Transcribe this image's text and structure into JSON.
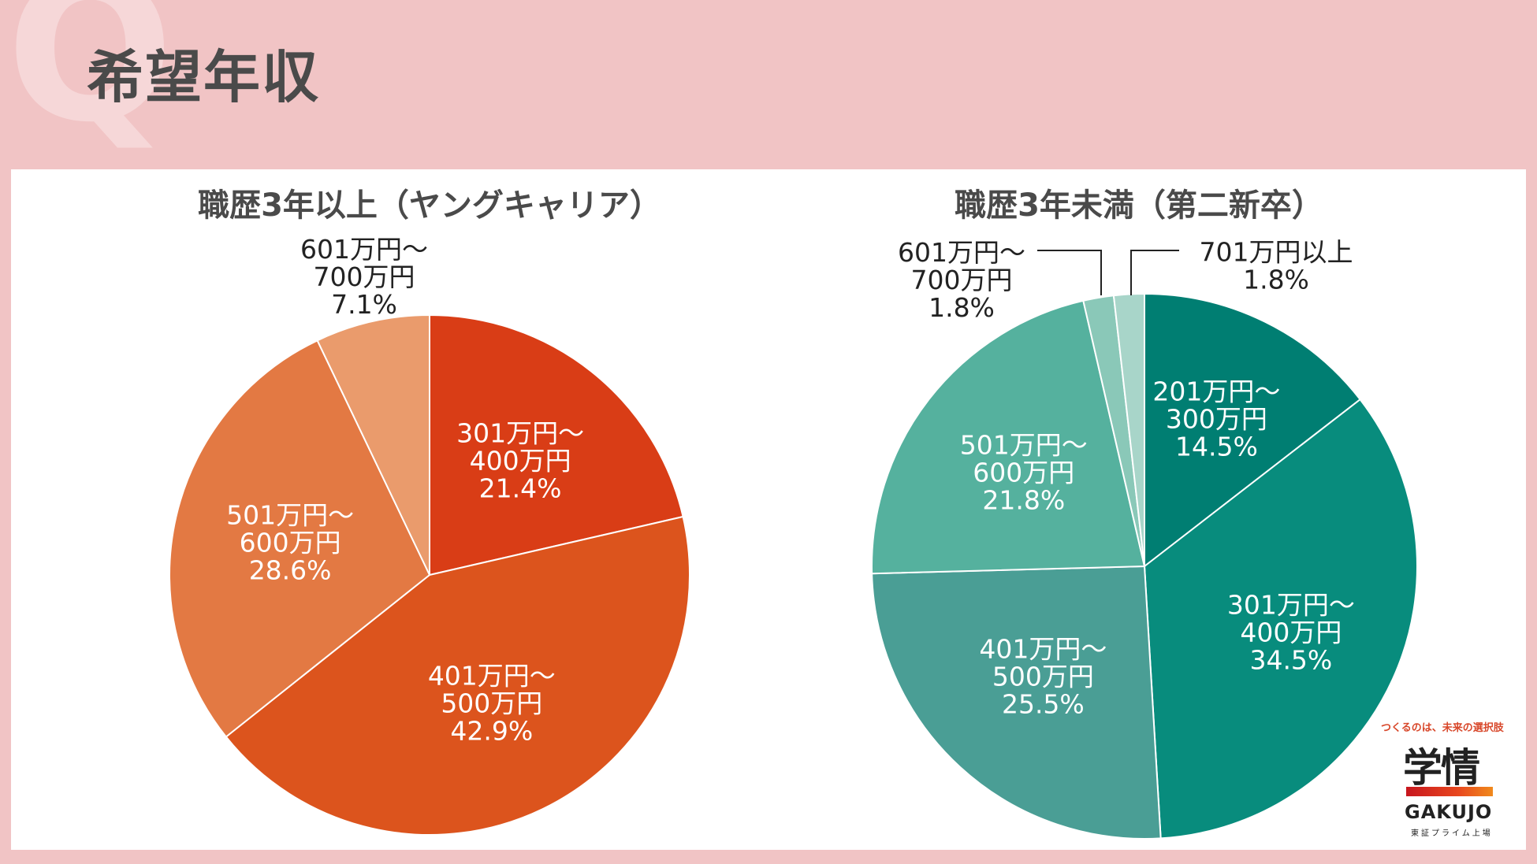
{
  "page": {
    "q_letter": "Q",
    "title": "希望年収"
  },
  "chart_data": [
    {
      "type": "pie",
      "title": "職歴3年以上（ヤングキャリア）",
      "unit": "%",
      "slices": [
        {
          "label_lines": [
            "301万円～",
            "400万円"
          ],
          "value": 21.4,
          "value_text": "21.4%",
          "color": "#d93d16"
        },
        {
          "label_lines": [
            "401万円～",
            "500万円"
          ],
          "value": 42.9,
          "value_text": "42.9%",
          "color": "#dc541d"
        },
        {
          "label_lines": [
            "501万円～",
            "600万円"
          ],
          "value": 28.6,
          "value_text": "28.6%",
          "color": "#e37943"
        },
        {
          "label_lines": [
            "601万円～",
            "700万円"
          ],
          "value": 7.1,
          "value_text": "7.1%",
          "color": "#ea9b6c"
        }
      ]
    },
    {
      "type": "pie",
      "title": "職歴3年未満（第二新卒）",
      "unit": "%",
      "slices": [
        {
          "label_lines": [
            "201万円～",
            "300万円"
          ],
          "value": 14.5,
          "value_text": "14.5%",
          "color": "#007e72"
        },
        {
          "label_lines": [
            "301万円～",
            "400万円"
          ],
          "value": 34.5,
          "value_text": "34.5%",
          "color": "#088c7d"
        },
        {
          "label_lines": [
            "401万円～",
            "500万円"
          ],
          "value": 25.5,
          "value_text": "25.5%",
          "color": "#4a9e95"
        },
        {
          "label_lines": [
            "501万円～",
            "600万円"
          ],
          "value": 21.8,
          "value_text": "21.8%",
          "color": "#55b19e"
        },
        {
          "label_lines": [
            "601万円～",
            "700万円"
          ],
          "value": 1.8,
          "value_text": "1.8%",
          "color": "#8ac8b8"
        },
        {
          "label_lines": [
            "701万円以上"
          ],
          "value": 1.8,
          "value_text": "1.8%",
          "color": "#a8d5c9"
        }
      ]
    }
  ],
  "logo": {
    "tagline": "つくるのは、未来の選択肢",
    "mark": "学情",
    "wordmark": "GAKUJO",
    "sub": "東証プライム上場"
  }
}
